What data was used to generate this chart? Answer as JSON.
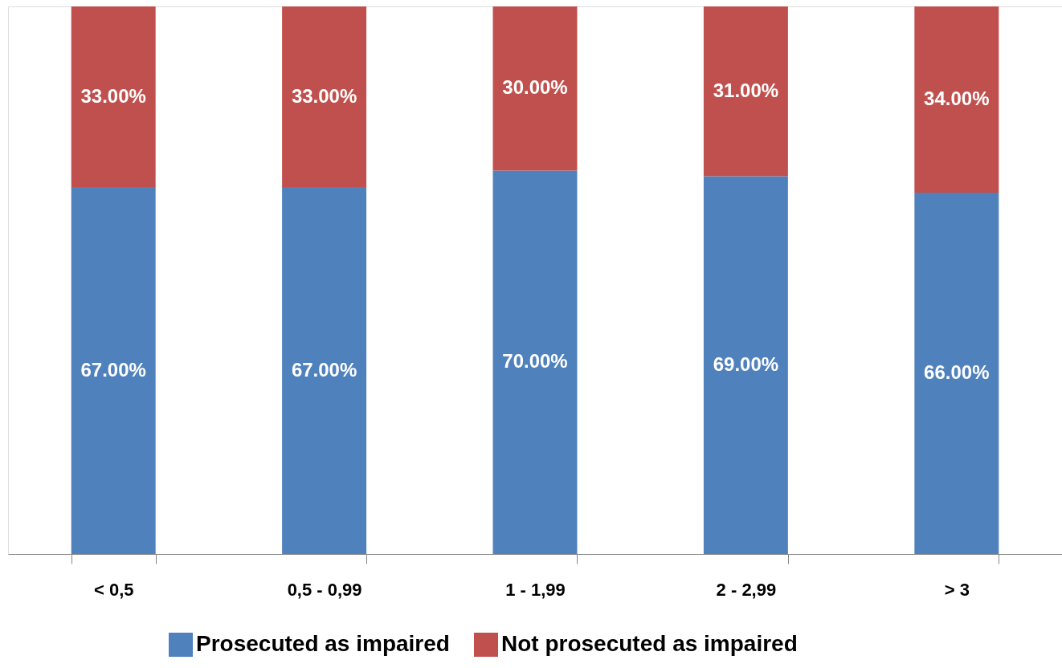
{
  "chart_data": {
    "type": "bar",
    "stacked": true,
    "categories": [
      "< 0,5",
      "0,5 - 0,99",
      "1 - 1,99",
      "2 - 2,99",
      "> 3"
    ],
    "series": [
      {
        "name": "Prosecuted as impaired",
        "color": "#4f81bd",
        "values": [
          67,
          67,
          70,
          69,
          66
        ],
        "value_labels": [
          "67.00%",
          "67.00%",
          "70.00%",
          "69.00%",
          "66.00%"
        ]
      },
      {
        "name": "Not prosecuted as impaired",
        "color": "#c0504d",
        "values": [
          33,
          33,
          30,
          31,
          34
        ],
        "value_labels": [
          "33.00%",
          "33.00%",
          "30.00%",
          "31.00%",
          "34.00%"
        ]
      }
    ],
    "legend": "bottom",
    "grid": false
  }
}
